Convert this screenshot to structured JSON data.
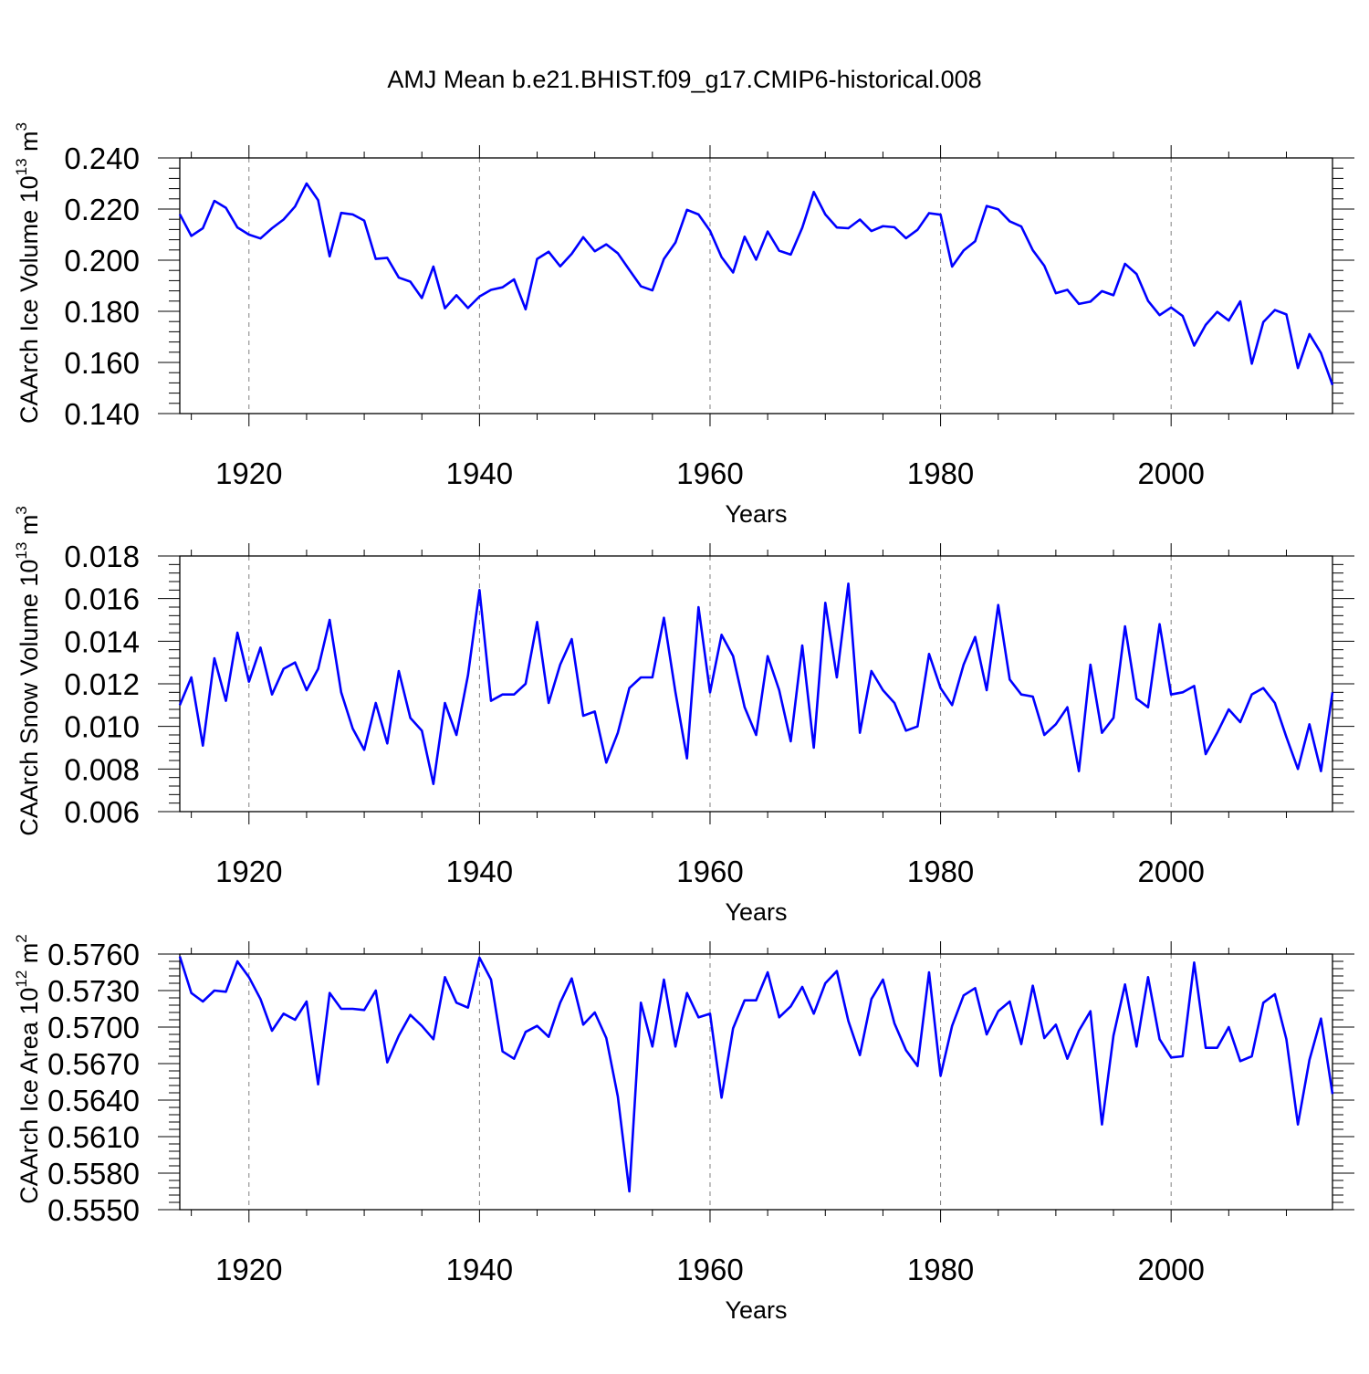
{
  "figure": {
    "title": "AMJ Mean b.e21.BHIST.f09_g17.CMIP6-historical.008",
    "line_color": "#0000ff"
  },
  "chart_data": [
    {
      "type": "line",
      "title": "AMJ Mean b.e21.BHIST.f09_g17.CMIP6-historical.008",
      "xlabel": "Years",
      "ylabel_main": "CAArch Ice Volume 10",
      "ylabel_exp": "13",
      "ylabel_unit": "m",
      "ylabel_unit_exp": "3",
      "xlim": [
        1914,
        2014
      ],
      "ylim": [
        0.14,
        0.24
      ],
      "xticks": [
        1920,
        1940,
        1960,
        1980,
        2000
      ],
      "xtick_labels": [
        "1920",
        "1940",
        "1960",
        "1980",
        "2000"
      ],
      "yticks": [
        0.14,
        0.16,
        0.18,
        0.2,
        0.22,
        0.24
      ],
      "ytick_labels": [
        "0.140",
        "0.160",
        "0.180",
        "0.200",
        "0.220",
        "0.240"
      ],
      "grid": "vertical dashed at major x ticks",
      "x_start": 1914,
      "values": [
        0.218,
        0.2095,
        0.2125,
        0.2232,
        0.2205,
        0.2128,
        0.21,
        0.2085,
        0.2125,
        0.2159,
        0.221,
        0.23,
        0.2235,
        0.2015,
        0.2185,
        0.2179,
        0.2155,
        0.2005,
        0.2009,
        0.1932,
        0.1916,
        0.1852,
        0.1975,
        0.1812,
        0.1863,
        0.1813,
        0.1858,
        0.1884,
        0.1894,
        0.1925,
        0.1808,
        0.2005,
        0.2033,
        0.1976,
        0.2025,
        0.209,
        0.2035,
        0.2062,
        0.2027,
        0.1962,
        0.1898,
        0.1882,
        0.2005,
        0.2069,
        0.2197,
        0.2179,
        0.2115,
        0.2012,
        0.1952,
        0.2092,
        0.2002,
        0.2112,
        0.2037,
        0.2022,
        0.2127,
        0.2267,
        0.2179,
        0.2128,
        0.2125,
        0.2159,
        0.2114,
        0.2133,
        0.2129,
        0.2086,
        0.2119,
        0.2184,
        0.2178,
        0.1975,
        0.2038,
        0.2074,
        0.2212,
        0.2199,
        0.2152,
        0.2132,
        0.2039,
        0.1978,
        0.1871,
        0.1884,
        0.1829,
        0.1838,
        0.1879,
        0.1863,
        0.1986,
        0.1946,
        0.1841,
        0.1785,
        0.1815,
        0.1782,
        0.1666,
        0.1747,
        0.1798,
        0.1764,
        0.1839,
        0.1595,
        0.1758,
        0.1805,
        0.1788,
        0.1578,
        0.1711,
        0.1637,
        0.1512
      ]
    },
    {
      "type": "line",
      "xlabel": "Years",
      "ylabel_main": "CAArch Snow Volume 10",
      "ylabel_exp": "13",
      "ylabel_unit": "m",
      "ylabel_unit_exp": "3",
      "xlim": [
        1914,
        2014
      ],
      "ylim": [
        0.006,
        0.018
      ],
      "xticks": [
        1920,
        1940,
        1960,
        1980,
        2000
      ],
      "xtick_labels": [
        "1920",
        "1940",
        "1960",
        "1980",
        "2000"
      ],
      "yticks": [
        0.006,
        0.008,
        0.01,
        0.012,
        0.014,
        0.016,
        0.018
      ],
      "ytick_labels": [
        "0.006",
        "0.008",
        "0.010",
        "0.012",
        "0.014",
        "0.016",
        "0.018"
      ],
      "grid": "vertical dashed at major x ticks",
      "x_start": 1914,
      "values": [
        0.011,
        0.0123,
        0.0091,
        0.0132,
        0.0112,
        0.0144,
        0.0121,
        0.0137,
        0.0115,
        0.0127,
        0.013,
        0.0117,
        0.0127,
        0.015,
        0.0116,
        0.0099,
        0.0089,
        0.0111,
        0.0092,
        0.0126,
        0.0104,
        0.0098,
        0.0073,
        0.0111,
        0.0096,
        0.0124,
        0.0164,
        0.0112,
        0.0115,
        0.0115,
        0.012,
        0.0149,
        0.0111,
        0.0129,
        0.0141,
        0.0105,
        0.0107,
        0.0083,
        0.0097,
        0.0118,
        0.0123,
        0.0123,
        0.0151,
        0.0116,
        0.0085,
        0.0156,
        0.0116,
        0.0143,
        0.0133,
        0.0109,
        0.0096,
        0.0133,
        0.0117,
        0.0093,
        0.0138,
        0.009,
        0.0158,
        0.0123,
        0.0167,
        0.0097,
        0.0126,
        0.0117,
        0.0111,
        0.0098,
        0.01,
        0.0134,
        0.0118,
        0.011,
        0.0129,
        0.0142,
        0.0117,
        0.0157,
        0.0122,
        0.0115,
        0.0114,
        0.0096,
        0.0101,
        0.0109,
        0.0079,
        0.0129,
        0.0097,
        0.0104,
        0.0147,
        0.0113,
        0.0109,
        0.0148,
        0.0115,
        0.0116,
        0.0119,
        0.0087,
        0.0097,
        0.0108,
        0.0102,
        0.0115,
        0.0118,
        0.0111,
        0.0095,
        0.008,
        0.0101,
        0.0079,
        0.0116
      ]
    },
    {
      "type": "line",
      "xlabel": "Years",
      "ylabel_main": "CAArch Ice Area 10",
      "ylabel_exp": "12",
      "ylabel_unit": "m",
      "ylabel_unit_exp": "2",
      "xlim": [
        1914,
        2014
      ],
      "ylim": [
        0.555,
        0.576
      ],
      "xticks": [
        1920,
        1940,
        1960,
        1980,
        2000
      ],
      "xtick_labels": [
        "1920",
        "1940",
        "1960",
        "1980",
        "2000"
      ],
      "yticks": [
        0.555,
        0.558,
        0.561,
        0.564,
        0.567,
        0.57,
        0.573,
        0.576
      ],
      "ytick_labels": [
        "0.5550",
        "0.5580",
        "0.5610",
        "0.5640",
        "0.5670",
        "0.5700",
        "0.5730",
        "0.5760"
      ],
      "grid": "vertical dashed at major x ticks",
      "x_start": 1914,
      "values": [
        0.5758,
        0.5728,
        0.5721,
        0.573,
        0.5729,
        0.5754,
        0.5741,
        0.5723,
        0.5697,
        0.5711,
        0.5706,
        0.5721,
        0.5653,
        0.5728,
        0.5715,
        0.5715,
        0.5714,
        0.573,
        0.5671,
        0.5693,
        0.571,
        0.5701,
        0.569,
        0.5741,
        0.572,
        0.5716,
        0.5757,
        0.5739,
        0.568,
        0.5674,
        0.5696,
        0.5701,
        0.5692,
        0.572,
        0.574,
        0.5702,
        0.5712,
        0.5691,
        0.5643,
        0.5565,
        0.572,
        0.5684,
        0.5739,
        0.5684,
        0.5728,
        0.5708,
        0.5711,
        0.5642,
        0.5699,
        0.5722,
        0.5722,
        0.5745,
        0.5708,
        0.5717,
        0.5733,
        0.5711,
        0.5736,
        0.5746,
        0.5705,
        0.5677,
        0.5723,
        0.5739,
        0.5703,
        0.5681,
        0.5668,
        0.5745,
        0.566,
        0.5701,
        0.5726,
        0.5732,
        0.5694,
        0.5713,
        0.5721,
        0.5686,
        0.5734,
        0.5691,
        0.5702,
        0.5674,
        0.5697,
        0.5713,
        0.562,
        0.5693,
        0.5735,
        0.5684,
        0.5741,
        0.569,
        0.5675,
        0.5676,
        0.5753,
        0.5683,
        0.5683,
        0.57,
        0.5672,
        0.5676,
        0.572,
        0.5727,
        0.569,
        0.562,
        0.5673,
        0.5707,
        0.5645
      ]
    }
  ]
}
